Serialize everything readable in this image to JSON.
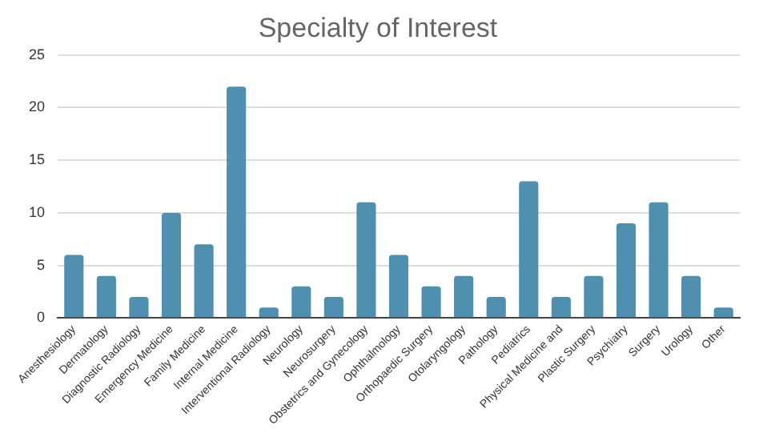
{
  "chart_data": {
    "type": "bar",
    "title": "Specialty of Interest",
    "categories": [
      "Anesthesiology",
      "Dermatology",
      "Diagnostic Radiology",
      "Emergency Medicine",
      "Family Medicine",
      "Internal Medicine",
      "Interventional Radiology",
      "Neurology",
      "Neurosurgery",
      "Obstetrics and Gynecology",
      "Ophthalmology",
      "Orthopaedic Surgery",
      "Otolaryngology",
      "Pathology",
      "Pediatrics",
      "Physical Medicine and",
      "Plastic Surgery",
      "Psychiatry",
      "Surgery",
      "Urology",
      "Other"
    ],
    "values": [
      6,
      4,
      2,
      10,
      7,
      22,
      1,
      3,
      2,
      11,
      6,
      3,
      4,
      2,
      13,
      2,
      4,
      9,
      11,
      4,
      1
    ],
    "color": "#4f8fb0",
    "ylim": [
      0,
      25
    ],
    "yticks": [
      0,
      5,
      10,
      15,
      20,
      25
    ],
    "grid": "y",
    "legend": false
  }
}
